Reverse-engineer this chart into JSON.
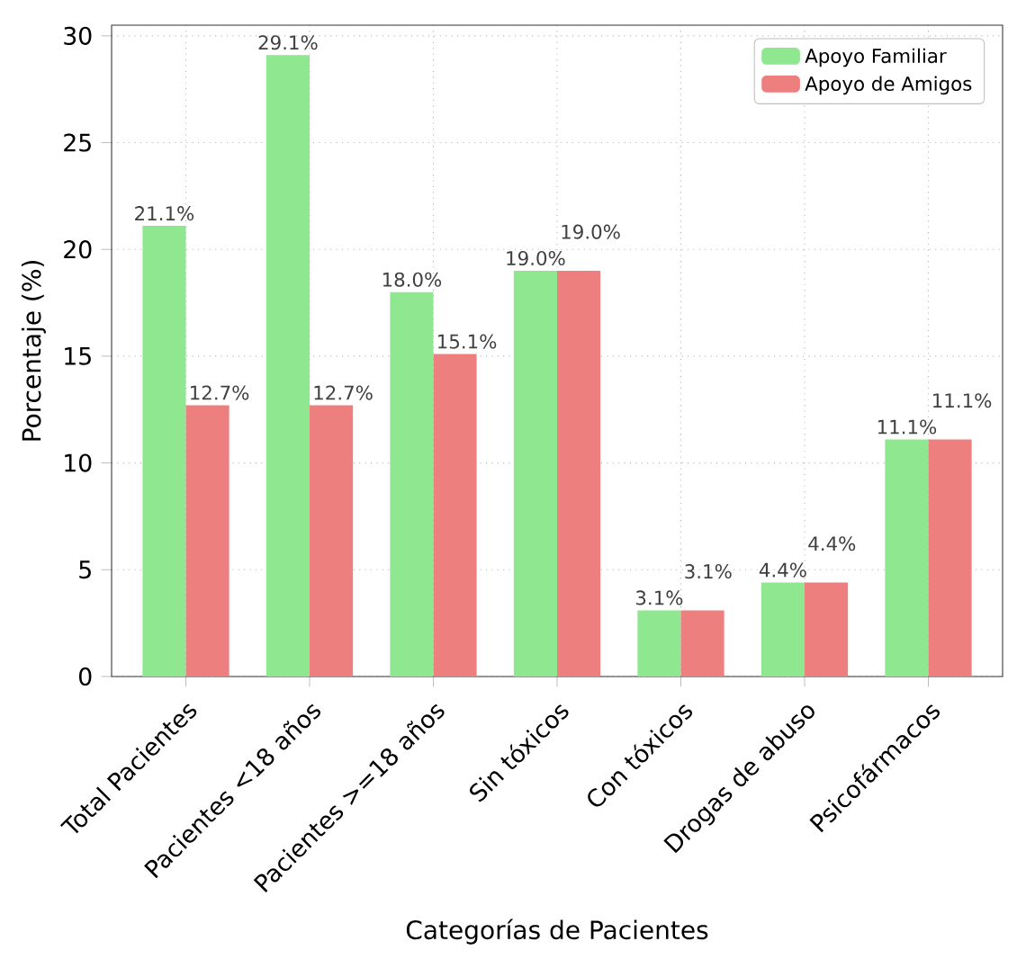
{
  "chart_data": {
    "type": "bar",
    "xlabel": "Categorías de Pacientes",
    "ylabel": "Porcentaje (%)",
    "categories": [
      "Total Pacientes",
      "Pacientes <18 años",
      "Pacientes >=18 años",
      "Sin tóxicos",
      "Con tóxicos",
      "Drogas de abuso",
      "Psicofármacos"
    ],
    "series": [
      {
        "name": "Apoyo Familiar",
        "color": "#8fe88f",
        "values": [
          21.1,
          29.1,
          18.0,
          19.0,
          3.1,
          4.4,
          11.1
        ],
        "value_labels": [
          "21.1%",
          "29.1%",
          "18.0%",
          "19.0%",
          "3.1%",
          "4.4%",
          "11.1%"
        ]
      },
      {
        "name": "Apoyo de Amigos",
        "color": "#ee7f7f",
        "values": [
          12.7,
          12.7,
          15.1,
          19.0,
          3.1,
          4.4,
          11.1
        ],
        "value_labels": [
          "12.7%",
          "12.7%",
          "15.1%",
          "19.0%",
          "3.1%",
          "4.4%",
          "11.1%"
        ]
      }
    ],
    "ylim": [
      0,
      30.5
    ],
    "yticks": [
      0,
      5,
      10,
      15,
      20,
      25,
      30
    ],
    "grid": true,
    "legend": "top right"
  }
}
